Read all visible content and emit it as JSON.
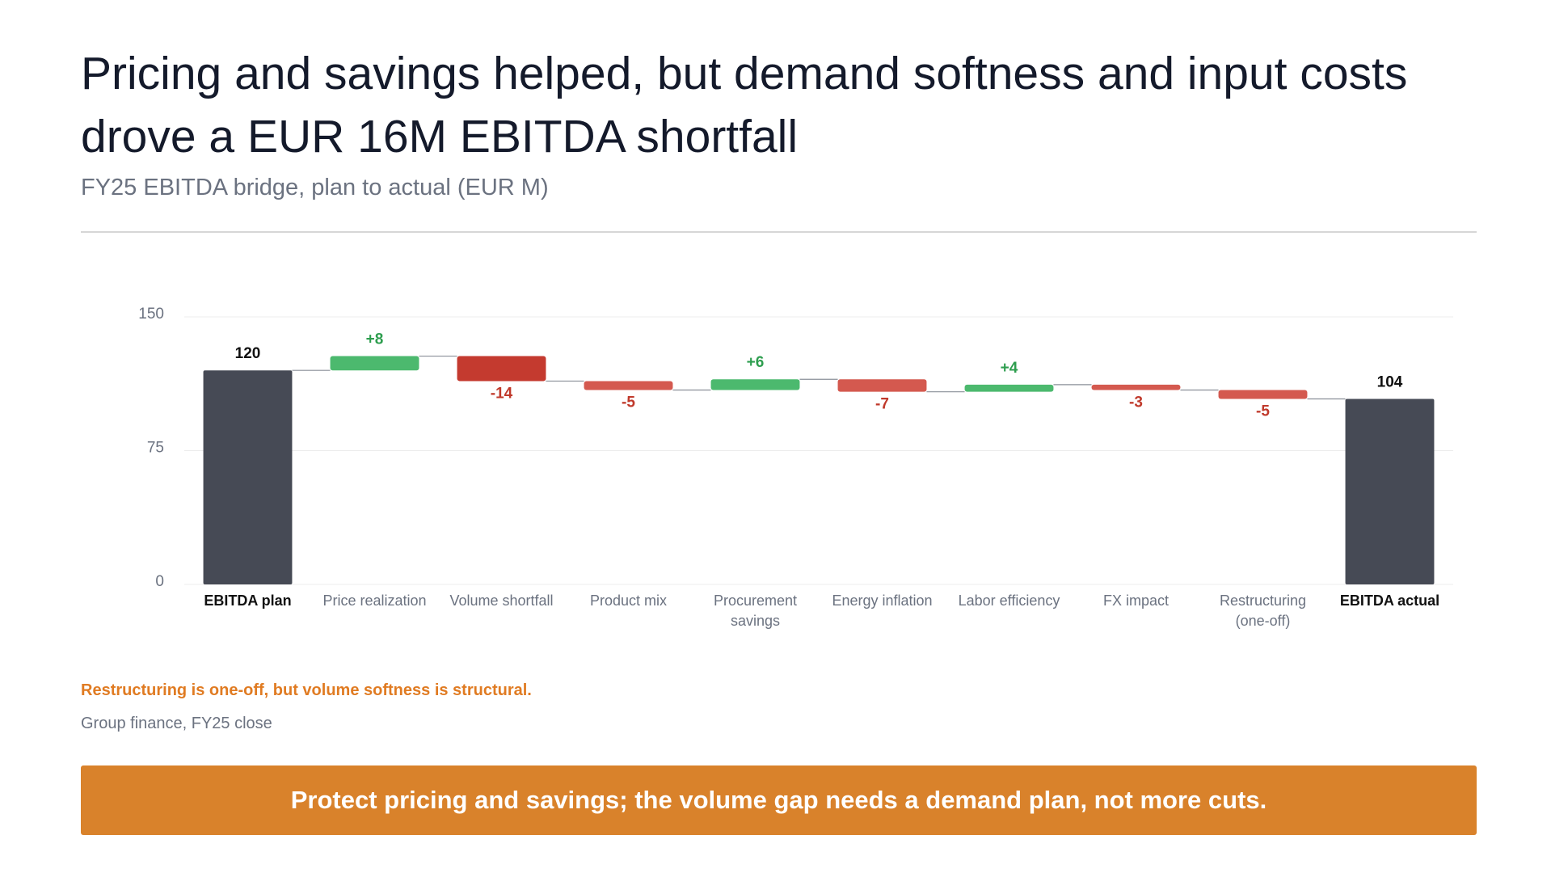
{
  "chart_data": {
    "type": "waterfall",
    "title": "Pricing and savings helped, but demand softness and input costs drove a EUR 16M EBITDA shortfall",
    "subtitle": "FY25 EBITDA bridge, plan to actual (EUR M)",
    "categories": [
      "EBITDA plan",
      "Price realization",
      "Volume shortfall",
      "Product mix",
      "Procurement savings",
      "Energy inflation",
      "Labor efficiency",
      "FX impact",
      "Restructuring (one-off)",
      "EBITDA actual"
    ],
    "measure": [
      "total",
      "relative",
      "relative",
      "relative",
      "relative",
      "relative",
      "relative",
      "relative",
      "relative",
      "total"
    ],
    "values": [
      120,
      8,
      -14,
      -5,
      6,
      -7,
      4,
      -3,
      -5,
      104
    ],
    "value_labels": [
      "120",
      "+8",
      "-14",
      "-5",
      "+6",
      "-7",
      "+4",
      "-3",
      "-5",
      "104"
    ],
    "colors": [
      "#464a55",
      "#4cb96e",
      "#c43a2f",
      "#d4594f",
      "#4cb96e",
      "#d4594f",
      "#4cb96e",
      "#d4594f",
      "#d4594f",
      "#464a55"
    ],
    "ylim": [
      0,
      150
    ],
    "yticks": [
      0,
      75,
      150
    ],
    "grid": true,
    "annotation": "Restructuring is one-off, but volume softness is structural."
  },
  "footer": {
    "source": "Group finance, FY25 close",
    "callout": "Protect pricing and savings; the volume gap needs a demand plan, not more cuts."
  }
}
